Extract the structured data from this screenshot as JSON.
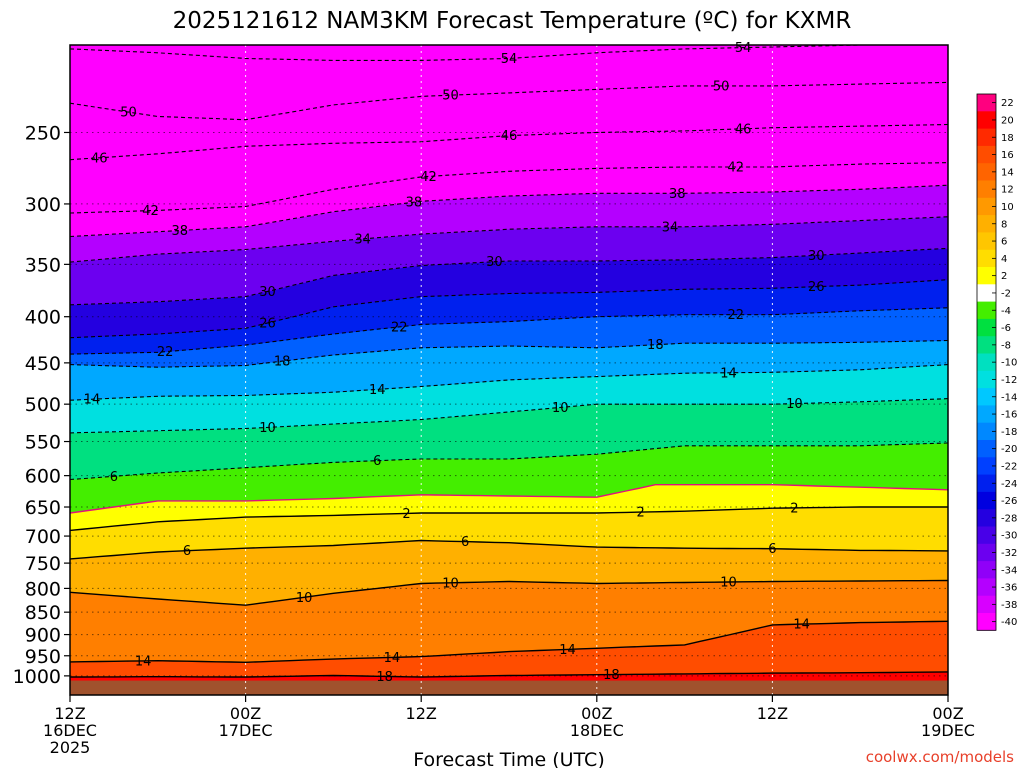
{
  "chart_data": {
    "type": "heatmap",
    "title": "2025121612 NAM3KM Forecast Temperature (ºC) for KXMR",
    "xlabel": "Forecast Time (UTC)",
    "ylabel": "",
    "credit": "coolwx.com/models",
    "y_scale": "log",
    "ylim": [
      1050,
      200
    ],
    "y_ticks": [
      250,
      300,
      350,
      400,
      450,
      500,
      550,
      600,
      650,
      700,
      750,
      800,
      850,
      900,
      950,
      1000
    ],
    "y_tick_labels": [
      "250",
      "300",
      "350",
      "400",
      "450",
      "500",
      "550",
      "600",
      "650",
      "700",
      "750",
      "800",
      "850",
      "900",
      "950",
      "1000"
    ],
    "xlim_hours": [
      0,
      60
    ],
    "x_ticks": [
      {
        "hour": 0,
        "line1": "12Z",
        "line2": "16DEC",
        "line3": "2025"
      },
      {
        "hour": 12,
        "line1": "00Z",
        "line2": "17DEC",
        "line3": ""
      },
      {
        "hour": 24,
        "line1": "12Z",
        "line2": "",
        "line3": ""
      },
      {
        "hour": 36,
        "line1": "00Z",
        "line2": "18DEC",
        "line3": ""
      },
      {
        "hour": 48,
        "line1": "12Z",
        "line2": "",
        "line3": ""
      },
      {
        "hour": 60,
        "line1": "00Z",
        "line2": "19DEC",
        "line3": ""
      }
    ],
    "colorbar": {
      "labels": [
        "22",
        "20",
        "18",
        "16",
        "14",
        "12",
        "10",
        "8",
        "6",
        "4",
        "2",
        "-2",
        "-4",
        "-6",
        "-8",
        "-10",
        "-12",
        "-14",
        "-16",
        "-18",
        "-20",
        "-22",
        "-24",
        "-26",
        "-28",
        "-30",
        "-32",
        "-34",
        "-36",
        "-38",
        "-40"
      ],
      "colors": [
        "#ff007f",
        "#ff0000",
        "#ff2a00",
        "#ff4d00",
        "#ff6400",
        "#ff7f00",
        "#ff9900",
        "#ffb000",
        "#ffc600",
        "#ffdd00",
        "#ffff00",
        "#ffffff",
        "#44ee00",
        "#00e040",
        "#00e080",
        "#00e0c0",
        "#00e0e0",
        "#00c8ff",
        "#00a8ff",
        "#0088ff",
        "#0060ff",
        "#0040ff",
        "#0020ee",
        "#0000e0",
        "#2400e0",
        "#4800e8",
        "#6c00f0",
        "#9000f8",
        "#b400ff",
        "#d800ff",
        "#ff00ff"
      ]
    },
    "contour_levels": [
      {
        "value": 18,
        "label": "18",
        "style": "solid",
        "color": "#000000",
        "points": [
          [
            0,
            1003
          ],
          [
            6,
            1002
          ],
          [
            12,
            1003
          ],
          [
            18,
            999
          ],
          [
            24,
            1003
          ],
          [
            30,
            999
          ],
          [
            36,
            997
          ],
          [
            42,
            995
          ],
          [
            48,
            993
          ],
          [
            54,
            992
          ],
          [
            60,
            990
          ]
        ],
        "label_hours": [
          21.5,
          37
        ]
      },
      {
        "value": 14,
        "label": "14",
        "style": "solid",
        "color": "#000000",
        "points": [
          [
            0,
            965
          ],
          [
            6,
            962
          ],
          [
            12,
            966
          ],
          [
            18,
            958
          ],
          [
            24,
            952
          ],
          [
            30,
            940
          ],
          [
            36,
            932
          ],
          [
            42,
            924
          ],
          [
            48,
            878
          ],
          [
            54,
            873
          ],
          [
            60,
            870
          ]
        ],
        "label_hours": [
          5,
          22,
          34,
          50
        ]
      },
      {
        "value": 10,
        "label": "10",
        "style": "solid",
        "color": "#000000",
        "points": [
          [
            0,
            808
          ],
          [
            6,
            822
          ],
          [
            12,
            835
          ],
          [
            18,
            810
          ],
          [
            24,
            790
          ],
          [
            30,
            786
          ],
          [
            36,
            790
          ],
          [
            42,
            788
          ],
          [
            48,
            786
          ],
          [
            54,
            785
          ],
          [
            60,
            784
          ]
        ],
        "label_hours": [
          16,
          26,
          45
        ]
      },
      {
        "value": 6,
        "label": "6",
        "style": "solid",
        "color": "#000000",
        "points": [
          [
            0,
            742
          ],
          [
            6,
            729
          ],
          [
            12,
            722
          ],
          [
            18,
            717
          ],
          [
            24,
            708
          ],
          [
            30,
            712
          ],
          [
            36,
            720
          ],
          [
            42,
            722
          ],
          [
            48,
            723
          ],
          [
            54,
            726
          ],
          [
            60,
            727
          ]
        ],
        "label_hours": [
          8,
          27,
          48
        ]
      },
      {
        "value": 2,
        "label": "2",
        "style": "solid",
        "color": "#000000",
        "points": [
          [
            0,
            690
          ],
          [
            6,
            675
          ],
          [
            12,
            667
          ],
          [
            18,
            664
          ],
          [
            24,
            660
          ],
          [
            30,
            660
          ],
          [
            36,
            660
          ],
          [
            42,
            657
          ],
          [
            48,
            652
          ],
          [
            54,
            650
          ],
          [
            60,
            650
          ]
        ],
        "label_hours": [
          23,
          39,
          49.5
        ]
      },
      {
        "value": -2,
        "label": "2",
        "style": "solid",
        "color": "#e0107e",
        "points": [
          [
            0,
            660
          ],
          [
            6,
            640
          ],
          [
            12,
            640
          ],
          [
            18,
            636
          ],
          [
            24,
            630
          ],
          [
            30,
            632
          ],
          [
            36,
            634
          ],
          [
            40,
            614
          ],
          [
            48,
            614
          ],
          [
            54,
            618
          ],
          [
            60,
            622
          ]
        ],
        "label_hours": []
      },
      {
        "value": -6,
        "label": "6",
        "style": "dashed",
        "color": "#000000",
        "points": [
          [
            0,
            606
          ],
          [
            6,
            596
          ],
          [
            12,
            588
          ],
          [
            18,
            580
          ],
          [
            24,
            575
          ],
          [
            30,
            575
          ],
          [
            36,
            568
          ],
          [
            42,
            556
          ],
          [
            48,
            556
          ],
          [
            54,
            556
          ],
          [
            60,
            552
          ]
        ],
        "label_hours": [
          3,
          21
        ]
      },
      {
        "value": -10,
        "label": "10",
        "style": "dashed",
        "color": "#000000",
        "points": [
          [
            0,
            538
          ],
          [
            6,
            535
          ],
          [
            12,
            532
          ],
          [
            18,
            526
          ],
          [
            24,
            520
          ],
          [
            30,
            510
          ],
          [
            36,
            500
          ],
          [
            42,
            500
          ],
          [
            48,
            500
          ],
          [
            54,
            497
          ],
          [
            60,
            493
          ]
        ],
        "label_hours": [
          13.5,
          33.5,
          49.5
        ]
      },
      {
        "value": -14,
        "label": "14",
        "style": "dashed",
        "color": "#000000",
        "points": [
          [
            0,
            495
          ],
          [
            6,
            490
          ],
          [
            12,
            489
          ],
          [
            18,
            485
          ],
          [
            24,
            478
          ],
          [
            30,
            470
          ],
          [
            36,
            466
          ],
          [
            42,
            462
          ],
          [
            48,
            461
          ],
          [
            54,
            458
          ],
          [
            60,
            452
          ]
        ],
        "label_hours": [
          1.5,
          21,
          45
        ]
      },
      {
        "value": -18,
        "label": "18",
        "style": "dashed",
        "color": "#000000",
        "points": [
          [
            0,
            452
          ],
          [
            6,
            455
          ],
          [
            12,
            453
          ],
          [
            18,
            441
          ],
          [
            24,
            433
          ],
          [
            30,
            431
          ],
          [
            36,
            433
          ],
          [
            42,
            428
          ],
          [
            48,
            428
          ],
          [
            54,
            427
          ],
          [
            60,
            425
          ]
        ],
        "label_hours": [
          14.5,
          40
        ]
      },
      {
        "value": -22,
        "label": "22",
        "style": "dashed",
        "color": "#000000",
        "points": [
          [
            0,
            440
          ],
          [
            6,
            438
          ],
          [
            12,
            430
          ],
          [
            18,
            418
          ],
          [
            24,
            408
          ],
          [
            30,
            405
          ],
          [
            36,
            400
          ],
          [
            42,
            398
          ],
          [
            48,
            398
          ],
          [
            54,
            394
          ],
          [
            60,
            391
          ]
        ],
        "label_hours": [
          6.5,
          22.5,
          45.5
        ]
      },
      {
        "value": -26,
        "label": "26",
        "style": "dashed",
        "color": "#000000",
        "points": [
          [
            0,
            422
          ],
          [
            6,
            418
          ],
          [
            12,
            412
          ],
          [
            18,
            390
          ],
          [
            24,
            380
          ],
          [
            30,
            377
          ],
          [
            36,
            376
          ],
          [
            42,
            373
          ],
          [
            48,
            372
          ],
          [
            54,
            369
          ],
          [
            60,
            364
          ]
        ],
        "label_hours": [
          13.5,
          51
        ]
      },
      {
        "value": -30,
        "label": "30",
        "style": "dashed",
        "color": "#000000",
        "points": [
          [
            0,
            388
          ],
          [
            6,
            385
          ],
          [
            12,
            380
          ],
          [
            18,
            360
          ],
          [
            24,
            351
          ],
          [
            30,
            347
          ],
          [
            36,
            347
          ],
          [
            42,
            346
          ],
          [
            48,
            344
          ],
          [
            54,
            340
          ],
          [
            60,
            336
          ]
        ],
        "label_hours": [
          13.5,
          29,
          51
        ]
      },
      {
        "value": -34,
        "label": "34",
        "style": "dashed",
        "color": "#000000",
        "points": [
          [
            0,
            348
          ],
          [
            6,
            341
          ],
          [
            12,
            337
          ],
          [
            18,
            330
          ],
          [
            24,
            324
          ],
          [
            30,
            320
          ],
          [
            36,
            318
          ],
          [
            42,
            318
          ],
          [
            48,
            316
          ],
          [
            54,
            313
          ],
          [
            60,
            310
          ]
        ],
        "label_hours": [
          20,
          41
        ]
      },
      {
        "value": -38,
        "label": "38",
        "style": "dashed",
        "color": "#000000",
        "points": [
          [
            0,
            326
          ],
          [
            6,
            322
          ],
          [
            12,
            318
          ],
          [
            18,
            306
          ],
          [
            24,
            298
          ],
          [
            30,
            294
          ],
          [
            36,
            292
          ],
          [
            42,
            292
          ],
          [
            48,
            291
          ],
          [
            54,
            289
          ],
          [
            60,
            286
          ]
        ],
        "label_hours": [
          7.5,
          23.5,
          41.5
        ]
      },
      {
        "value": -42,
        "label": "42",
        "style": "dashed",
        "color": "#000000",
        "points": [
          [
            0,
            307
          ],
          [
            6,
            305
          ],
          [
            12,
            302
          ],
          [
            18,
            289
          ],
          [
            24,
            280
          ],
          [
            30,
            276
          ],
          [
            36,
            274
          ],
          [
            42,
            273
          ],
          [
            48,
            273
          ],
          [
            54,
            271
          ],
          [
            60,
            270
          ]
        ],
        "label_hours": [
          5.5,
          24.5,
          45.5
        ]
      },
      {
        "value": -46,
        "label": "46",
        "style": "dashed",
        "color": "#000000",
        "points": [
          [
            0,
            268
          ],
          [
            6,
            264
          ],
          [
            12,
            259
          ],
          [
            18,
            257
          ],
          [
            24,
            256
          ],
          [
            30,
            252
          ],
          [
            36,
            250
          ],
          [
            42,
            249
          ],
          [
            48,
            247
          ],
          [
            54,
            246
          ],
          [
            60,
            245
          ]
        ],
        "label_hours": [
          2,
          30,
          46
        ]
      },
      {
        "value": -50,
        "label": "50",
        "style": "dashed",
        "color": "#000000",
        "points": [
          [
            0,
            232
          ],
          [
            6,
            240
          ],
          [
            12,
            242
          ],
          [
            18,
            233
          ],
          [
            24,
            228
          ],
          [
            30,
            226
          ],
          [
            36,
            224
          ],
          [
            42,
            222
          ],
          [
            48,
            222
          ],
          [
            54,
            221
          ],
          [
            60,
            220
          ]
        ],
        "label_hours": [
          4,
          26,
          44.5
        ]
      },
      {
        "value": -54,
        "label": "54",
        "style": "dashed",
        "color": "#000000",
        "points": [
          [
            0,
            202
          ],
          [
            6,
            204
          ],
          [
            12,
            207
          ],
          [
            18,
            208
          ],
          [
            24,
            208
          ],
          [
            30,
            207
          ],
          [
            36,
            204
          ],
          [
            42,
            202
          ],
          [
            48,
            201
          ],
          [
            54,
            200
          ],
          [
            60,
            200
          ]
        ],
        "label_hours": [
          30,
          46
        ]
      }
    ]
  }
}
